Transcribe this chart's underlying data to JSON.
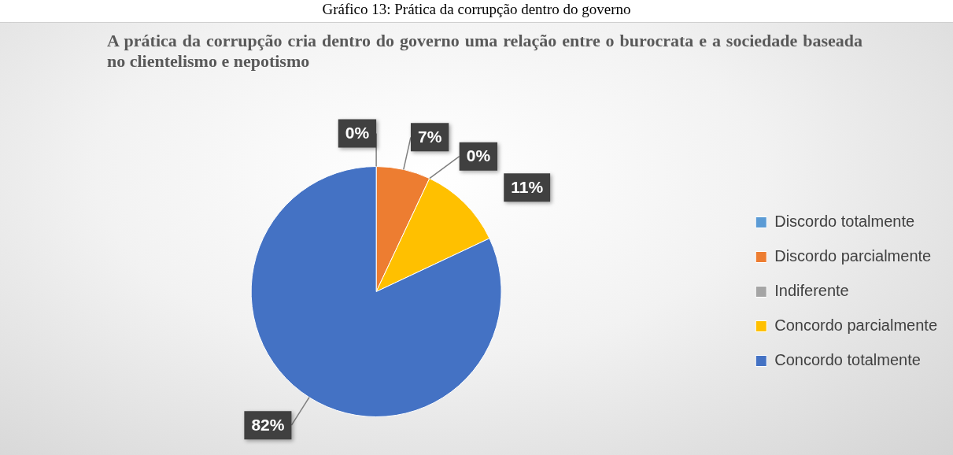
{
  "chart_data": {
    "type": "pie",
    "title": "A prática da corrupção cria dentro do governo uma relação entre o burocrata e a sociedade baseada no clientelismo e nepotismo",
    "annotations": [
      "Gráfico 13: Prática da corrupção dentro do governo"
    ],
    "categories": [
      "Discordo totalmente",
      "Discordo parcialmente",
      "Indiferente",
      "Concordo parcialmente",
      "Concordo totalmente"
    ],
    "values": [
      0,
      7,
      0,
      11,
      82
    ],
    "colors": [
      "#5b9bd5",
      "#ed7d31",
      "#a5a5a5",
      "#ffc000",
      "#4472c4"
    ],
    "value_labels": [
      "0%",
      "7%",
      "0%",
      "11%",
      "82%"
    ],
    "legend": "right"
  }
}
